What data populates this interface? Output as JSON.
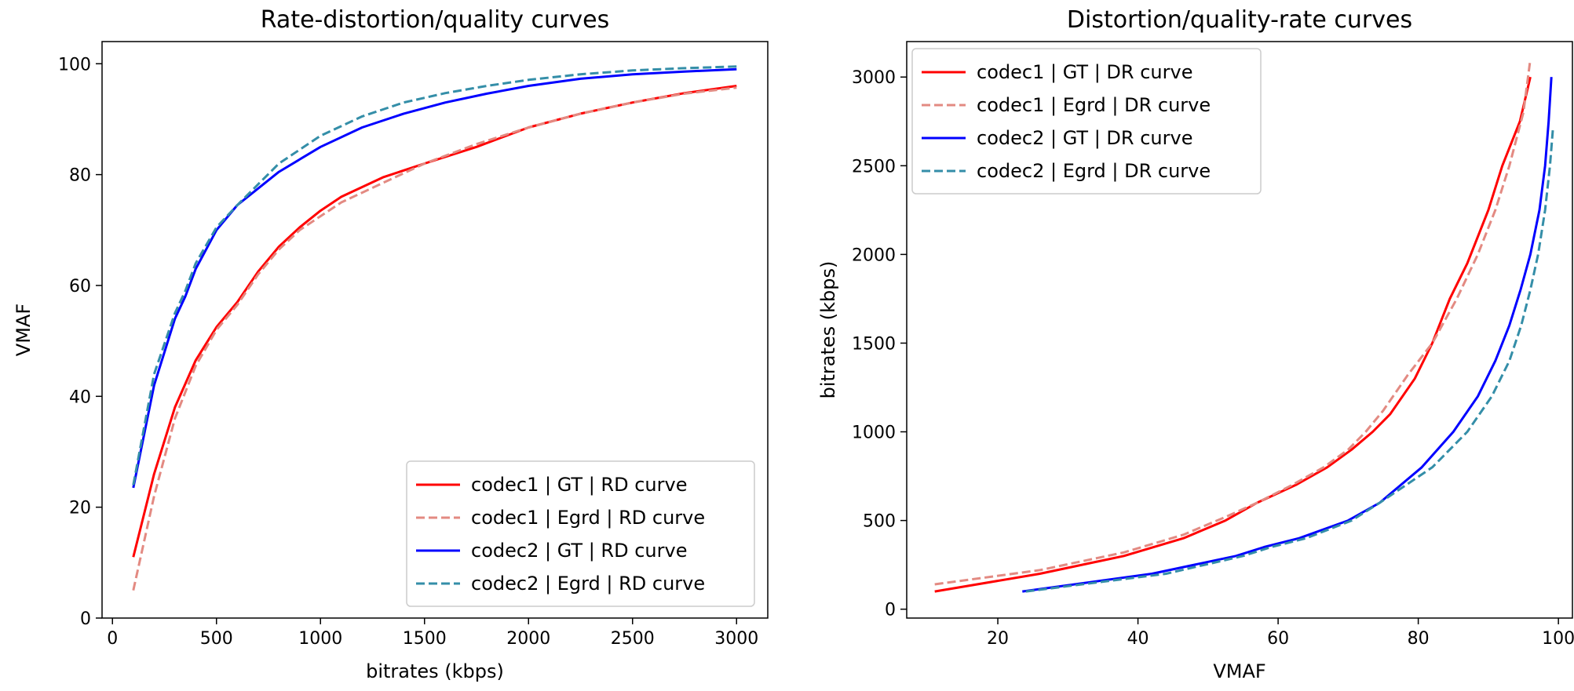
{
  "chart_data": [
    {
      "type": "line",
      "title": "Rate-distortion/quality curves",
      "xlabel": "bitrates (kbps)",
      "ylabel": "VMAF",
      "xlim": [
        -50,
        3150
      ],
      "ylim": [
        0,
        104
      ],
      "xticks": [
        0,
        500,
        1000,
        1500,
        2000,
        2500,
        3000
      ],
      "yticks": [
        0,
        20,
        40,
        60,
        80,
        100
      ],
      "legend_position": "lower-right",
      "grid": false,
      "series": [
        {
          "name": "codec1 | GT | RD curve",
          "color": "#ff0000",
          "dashed": false,
          "x": [
            100,
            200,
            300,
            400,
            500,
            600,
            700,
            800,
            900,
            1000,
            1100,
            1300,
            1500,
            1750,
            2000,
            2250,
            2500,
            2750,
            3000
          ],
          "y": [
            11,
            26,
            38,
            46.5,
            52.5,
            57,
            62.5,
            67,
            70.5,
            73.5,
            76,
            79.5,
            82,
            85,
            88.5,
            91,
            93,
            94.7,
            96
          ]
        },
        {
          "name": "codec1 | Egrd | RD curve",
          "color": "#e38a82",
          "dashed": true,
          "x": [
            100,
            200,
            300,
            400,
            500,
            600,
            700,
            800,
            900,
            1000,
            1100,
            1300,
            1500,
            1750,
            2000,
            2250,
            2500,
            2750,
            3000
          ],
          "y": [
            5,
            22,
            36,
            45.5,
            52,
            56.5,
            62,
            66.5,
            70,
            72.5,
            75,
            78.5,
            82,
            85.5,
            88.5,
            91,
            93,
            94.6,
            95.7
          ]
        },
        {
          "name": "codec2 | GT | RD curve",
          "color": "#0000ff",
          "dashed": false,
          "x": [
            100,
            200,
            300,
            350,
            400,
            500,
            600,
            800,
            1000,
            1200,
            1400,
            1600,
            1800,
            2000,
            2250,
            2500,
            2750,
            3000
          ],
          "y": [
            23.5,
            42,
            54,
            58,
            63,
            70,
            74.5,
            80.5,
            85,
            88.5,
            91,
            93,
            94.6,
            96,
            97.3,
            98.1,
            98.6,
            99
          ]
        },
        {
          "name": "codec2 | Egrd | RD curve",
          "color": "#348ea8",
          "dashed": true,
          "x": [
            100,
            200,
            300,
            350,
            400,
            500,
            600,
            800,
            1000,
            1200,
            1400,
            1600,
            1800,
            2000,
            2250,
            2500,
            2750,
            3000
          ],
          "y": [
            24,
            44,
            55,
            59,
            64,
            70.5,
            74.5,
            82,
            87,
            90.5,
            93,
            94.7,
            96,
            97.1,
            98.1,
            98.8,
            99.2,
            99.5
          ]
        }
      ]
    },
    {
      "type": "line",
      "title": "Distortion/quality-rate curves",
      "xlabel": "VMAF",
      "ylabel": "bitrates (kbps)",
      "xlim": [
        7,
        102
      ],
      "ylim": [
        -50,
        3200
      ],
      "xticks": [
        20,
        40,
        60,
        80,
        100
      ],
      "yticks": [
        0,
        500,
        1000,
        1500,
        2000,
        2500,
        3000
      ],
      "legend_position": "upper-left",
      "grid": false,
      "series": [
        {
          "name": "codec1 | GT | DR curve",
          "color": "#ff0000",
          "dashed": false,
          "x": [
            11,
            26,
            38,
            46.5,
            52.5,
            57,
            62.5,
            67,
            70.5,
            73.5,
            76,
            79.5,
            82,
            84.5,
            87,
            90,
            92,
            94.5,
            96
          ],
          "y": [
            100,
            200,
            300,
            400,
            500,
            600,
            700,
            800,
            900,
            1000,
            1100,
            1300,
            1500,
            1750,
            1950,
            2250,
            2500,
            2750,
            3000
          ]
        },
        {
          "name": "codec1 | Egrd | DR curve",
          "color": "#e38a82",
          "dashed": true,
          "x": [
            11,
            26,
            38,
            46.5,
            52.5,
            57,
            62,
            66.5,
            70,
            72.5,
            75,
            78.5,
            82,
            85.5,
            88.5,
            91,
            93,
            95,
            96
          ],
          "y": [
            140,
            220,
            320,
            420,
            520,
            600,
            700,
            800,
            900,
            1000,
            1120,
            1320,
            1500,
            1750,
            2000,
            2250,
            2500,
            2800,
            3100
          ]
        },
        {
          "name": "codec2 | GT | DR curve",
          "color": "#0000ff",
          "dashed": false,
          "x": [
            23.5,
            42,
            54,
            58,
            63,
            70,
            74.5,
            80.5,
            85,
            88.5,
            91,
            93,
            94.6,
            96,
            97.3,
            98.1,
            98.6,
            99
          ],
          "y": [
            100,
            200,
            300,
            350,
            400,
            500,
            600,
            800,
            1000,
            1200,
            1400,
            1600,
            1800,
            2000,
            2250,
            2500,
            2750,
            3000
          ]
        },
        {
          "name": "codec2 | Egrd | DR curve",
          "color": "#348ea8",
          "dashed": true,
          "x": [
            24,
            44,
            55,
            59,
            64,
            70.5,
            74.5,
            82,
            87,
            90.5,
            93,
            94.7,
            96,
            97.1,
            98.1,
            98.8,
            99.2
          ],
          "y": [
            100,
            200,
            300,
            350,
            400,
            500,
            600,
            800,
            1000,
            1200,
            1400,
            1600,
            1800,
            2000,
            2250,
            2500,
            2700
          ]
        }
      ]
    }
  ]
}
